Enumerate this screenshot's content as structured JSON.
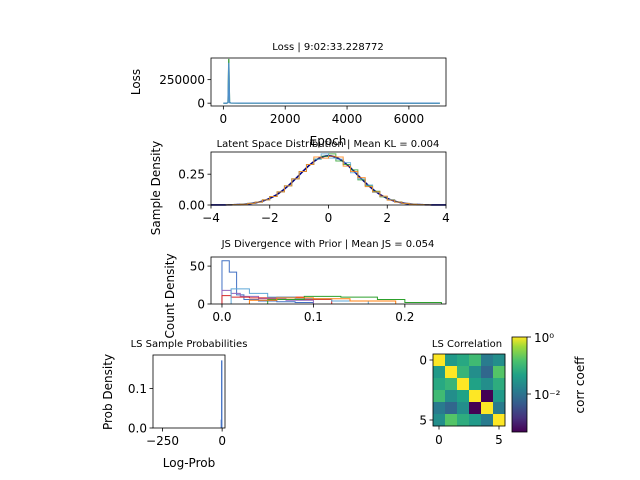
{
  "chart_data": [
    {
      "type": "line",
      "title": "Loss | 9:02:33.228772",
      "xlabel": "Epoch",
      "ylabel": "Loss",
      "xlim": [
        -400,
        7200
      ],
      "ylim": [
        -30000,
        480000
      ],
      "xticks": [
        "0",
        "2000",
        "4000",
        "6000"
      ],
      "yticks": [
        "0",
        "250000"
      ],
      "series": [
        {
          "color": "#3a9e3a",
          "x": [
            0,
            110,
            150,
            175,
            200,
            240,
            500,
            1000,
            3000,
            5000,
            7000
          ],
          "y": [
            0,
            0,
            8000,
            470000,
            8000,
            2000,
            500,
            300,
            200,
            100,
            100
          ]
        },
        {
          "color": "#4f8fc9",
          "x": [
            0,
            110,
            150,
            175,
            200,
            240,
            500,
            1000,
            3000,
            5000,
            7000
          ],
          "y": [
            0,
            0,
            6000,
            430000,
            6000,
            1500,
            400,
            200,
            100,
            100,
            100
          ]
        }
      ]
    },
    {
      "type": "line",
      "title": "Latent Space Distribution | Mean KL = 0.004",
      "ylabel": "Sample Density",
      "xlim": [
        -4,
        4
      ],
      "ylim": [
        0,
        0.43
      ],
      "xticks": [
        "−4",
        "−2",
        "0",
        "2",
        "4"
      ],
      "yticks": [
        "0.00",
        "0.25"
      ],
      "series": [
        {
          "color": "#000080",
          "function": "standard-normal-pdf"
        },
        {
          "color": "#2ca02c",
          "function": "standard-normal-pdf-step"
        },
        {
          "color": "#5ea7d8",
          "function": "standard-normal-pdf-step"
        },
        {
          "color": "#ff7f0e",
          "function": "standard-normal-pdf-step"
        }
      ]
    },
    {
      "type": "bar",
      "title": "JS Divergence with Prior | Mean JS = 0.054",
      "ylabel": "Count Density",
      "xlim": [
        -0.012,
        0.245
      ],
      "ylim": [
        0,
        62
      ],
      "xticks": [
        "0.0",
        "0.1",
        "0.2"
      ],
      "yticks": [
        "0",
        "50"
      ],
      "series": [
        {
          "color": "#4472c4",
          "edges": [
            0,
            0.008,
            0.016,
            0.024,
            0.04,
            0.06,
            0.08,
            0.1
          ],
          "values": [
            57,
            42,
            12,
            6,
            4,
            3,
            2
          ]
        },
        {
          "color": "#9467bd",
          "edges": [
            0,
            0.01,
            0.02,
            0.04,
            0.07,
            0.1
          ],
          "values": [
            18,
            14,
            10,
            7,
            5
          ]
        },
        {
          "color": "#d62728",
          "edges": [
            0,
            0.01,
            0.03,
            0.06,
            0.09,
            0.12
          ],
          "values": [
            11,
            9,
            8,
            9,
            6
          ]
        },
        {
          "color": "#5ea7d8",
          "edges": [
            0.01,
            0.03,
            0.05,
            0.08,
            0.12,
            0.16
          ],
          "values": [
            20,
            14,
            9,
            7,
            4
          ]
        },
        {
          "color": "#2ca02c",
          "edges": [
            0.05,
            0.09,
            0.13,
            0.17,
            0.2,
            0.24
          ],
          "values": [
            6,
            10,
            9,
            6,
            2
          ]
        },
        {
          "color": "#ff7f0e",
          "edges": [
            0.03,
            0.06,
            0.1,
            0.14,
            0.19
          ],
          "values": [
            5,
            8,
            7,
            4
          ]
        }
      ]
    },
    {
      "type": "bar",
      "title": "LS Sample Probabilities",
      "xlabel": "Log-Prob",
      "ylabel": "Prob Density",
      "xlim": [
        -290,
        12
      ],
      "ylim": [
        0,
        0.185
      ],
      "xticks": [
        "−250",
        "0"
      ],
      "yticks": [
        "0.0",
        "0.1"
      ],
      "series": [
        {
          "color": "#4472c4",
          "edges": [
            -4,
            -2.5,
            -1
          ],
          "values": [
            0.02,
            0.17
          ]
        }
      ]
    },
    {
      "type": "heatmap",
      "title": "LS Correlation",
      "xticks": [
        "0",
        "5"
      ],
      "yticks": [
        "0",
        "5"
      ],
      "colorbar": {
        "label": "corr coeff",
        "scale": "log",
        "ticks": [
          "10⁰",
          "10⁻²"
        ],
        "range": [
          0.0003,
          1
        ]
      },
      "values": [
        [
          1.0,
          0.03,
          0.05,
          0.1,
          0.01,
          0.02
        ],
        [
          0.03,
          1.0,
          0.08,
          0.02,
          0.005,
          0.15
        ],
        [
          0.05,
          0.08,
          1.0,
          0.04,
          0.02,
          0.06
        ],
        [
          0.1,
          0.02,
          0.04,
          1.0,
          0.0003,
          0.03
        ],
        [
          0.01,
          0.005,
          0.02,
          0.0003,
          1.0,
          0.01
        ],
        [
          0.02,
          0.15,
          0.06,
          0.03,
          0.01,
          1.0
        ]
      ]
    }
  ]
}
